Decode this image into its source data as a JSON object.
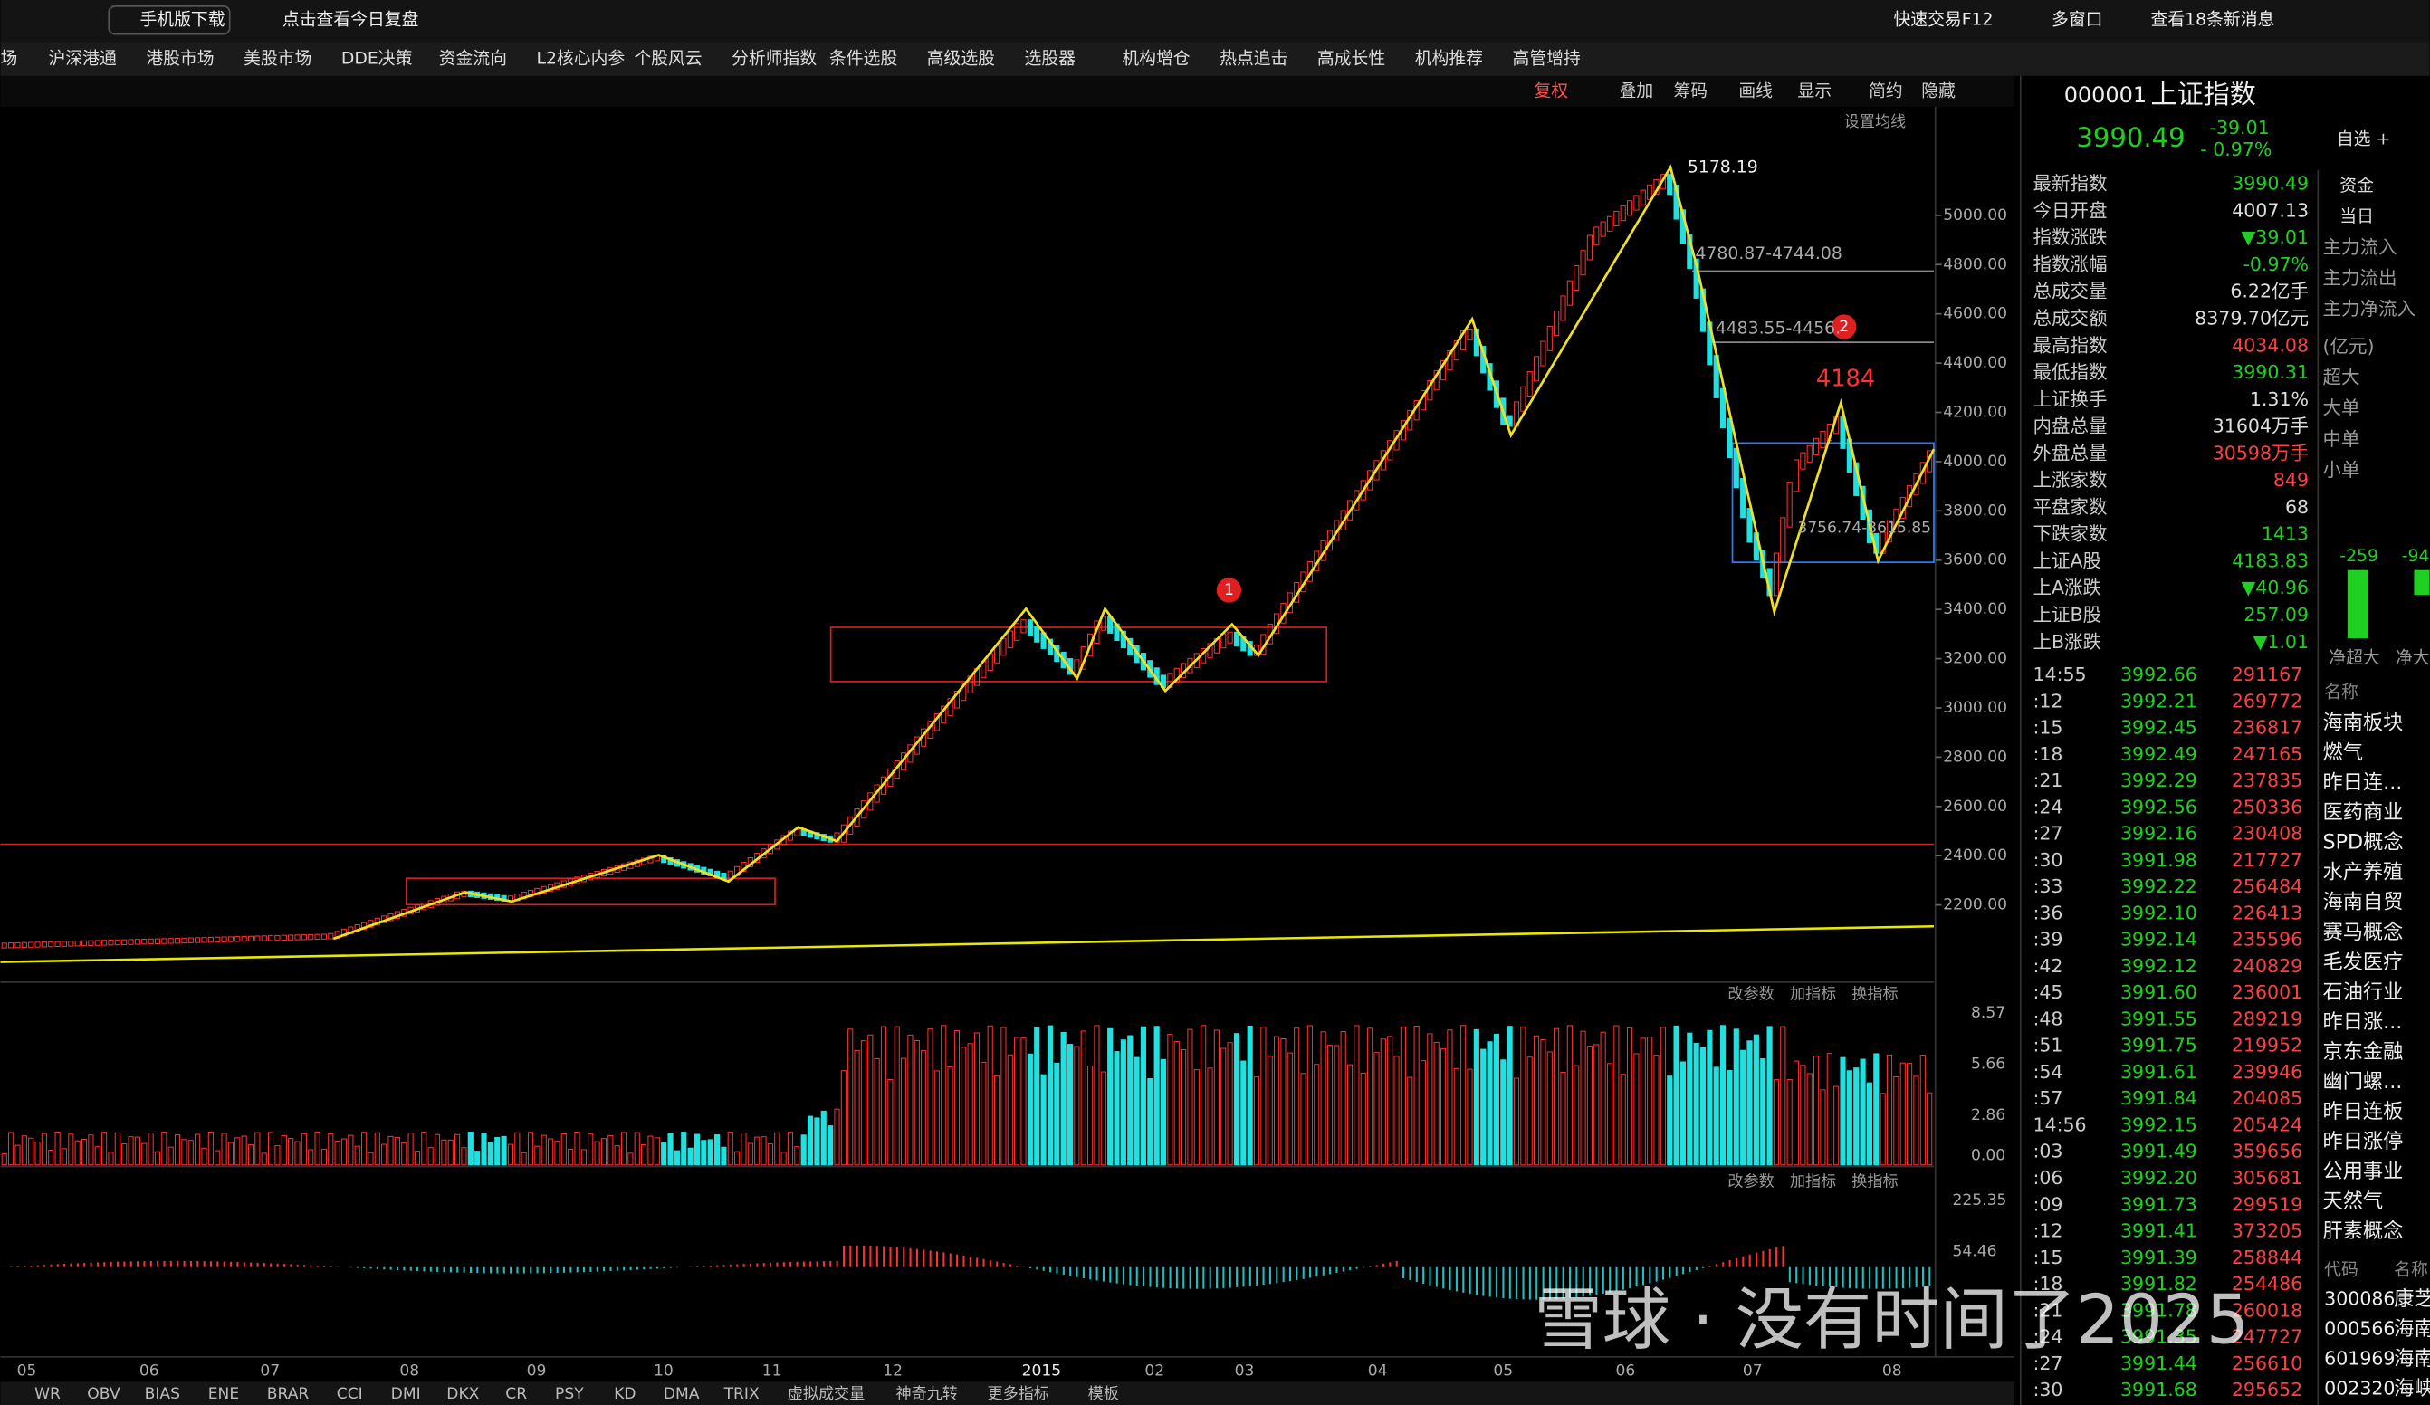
{
  "top_bar": {
    "left": [
      "手机版下载",
      "点击查看今日复盘"
    ],
    "right": [
      "快速交易F12",
      "多窗口",
      "查看18条新消息"
    ]
  },
  "menu": [
    "场",
    "沪深港通",
    "港股市场",
    "美股市场",
    "DDE决策",
    "资金流向",
    "L2核心内参",
    "个股风云",
    "分析师指数",
    "条件选股",
    "高级选股",
    "选股器",
    "机构增仓",
    "热点追击",
    "高成长性",
    "机构推荐",
    "高管增持"
  ],
  "toolbar": [
    "复权",
    "叠加",
    "筹码",
    "画线",
    "显示",
    "简约",
    "隐藏"
  ],
  "ma_setting": "设置均线",
  "price_axis": [
    "5000.00",
    "4800.00",
    "4600.00",
    "4400.00",
    "4200.00",
    "4000.00",
    "3800.00",
    "3600.00",
    "3400.00",
    "3200.00",
    "3000.00",
    "2800.00",
    "2600.00",
    "2400.00",
    "2200.00"
  ],
  "annotations": {
    "high": "5178.19",
    "band1": "4780.87-4744.08",
    "band2": "4483.55-4456.",
    "peak": "4184",
    "range": "3756.74-3615.85",
    "marker1": "1",
    "marker2": "2"
  },
  "panel_buttons": [
    "改参数",
    "加指标",
    "换指标"
  ],
  "volume_axis": [
    "8.57",
    "5.66",
    "2.86",
    "0.00"
  ],
  "macd_axis": [
    "225.35",
    "54.46"
  ],
  "x_axis": [
    "05",
    "06",
    "07",
    "08",
    "09",
    "10",
    "11",
    "12",
    "2015",
    "02",
    "03",
    "04",
    "05",
    "06",
    "07",
    "08"
  ],
  "bottom_tabs": [
    "WR",
    "OBV",
    "BIAS",
    "ENE",
    "BRAR",
    "CCI",
    "DMI",
    "DKX",
    "CR",
    "PSY",
    "KD",
    "DMA",
    "TRIX",
    "虚拟成交量",
    "神奇九转",
    "更多指标",
    "模板"
  ],
  "quote": {
    "code": "000001",
    "name": "上证指数",
    "price": "3990.49",
    "change": "-39.01",
    "pct": "- 0.97%",
    "watch": "自选 +"
  },
  "stats": [
    [
      "最新指数",
      "3990.49"
    ],
    [
      "今日开盘",
      "4007.13"
    ],
    [
      "指数涨跌",
      "▼39.01"
    ],
    [
      "指数涨幅",
      "-0.97%"
    ],
    [
      "总成交量",
      "6.22亿手"
    ],
    [
      "总成交额",
      "8379.70亿元"
    ],
    [
      "最高指数",
      "4034.08"
    ],
    [
      "最低指数",
      "3990.31"
    ],
    [
      "上证换手",
      "1.31%"
    ],
    [
      "内盘总量",
      "31604万手"
    ],
    [
      "外盘总量",
      "30598万手"
    ],
    [
      "上涨家数",
      "849"
    ],
    [
      "平盘家数",
      "68"
    ],
    [
      "下跌家数",
      "1413"
    ],
    [
      "上证A股",
      "4183.83"
    ],
    [
      "上A涨跌",
      "▼40.96"
    ],
    [
      "上证B股",
      "257.09"
    ],
    [
      "上B涨跌",
      "▼1.01"
    ]
  ],
  "trades": [
    [
      "14:55",
      "3992.66",
      "291167"
    ],
    [
      ":12",
      "3992.21",
      "269772"
    ],
    [
      ":15",
      "3992.45",
      "236817"
    ],
    [
      ":18",
      "3992.49",
      "247165"
    ],
    [
      ":21",
      "3992.29",
      "237835"
    ],
    [
      ":24",
      "3992.56",
      "250336"
    ],
    [
      ":27",
      "3992.16",
      "230408"
    ],
    [
      ":30",
      "3991.98",
      "217727"
    ],
    [
      ":33",
      "3992.22",
      "256484"
    ],
    [
      ":36",
      "3992.10",
      "226413"
    ],
    [
      ":39",
      "3992.14",
      "235596"
    ],
    [
      ":42",
      "3992.12",
      "240829"
    ],
    [
      ":45",
      "3991.60",
      "236001"
    ],
    [
      ":48",
      "3991.55",
      "289219"
    ],
    [
      ":51",
      "3991.75",
      "219952"
    ],
    [
      ":54",
      "3991.61",
      "239946"
    ],
    [
      ":57",
      "3991.84",
      "204085"
    ],
    [
      "14:56",
      "3992.15",
      "205424"
    ],
    [
      ":03",
      "3991.49",
      "359656"
    ],
    [
      ":06",
      "3992.20",
      "305681"
    ],
    [
      ":09",
      "3991.73",
      "299519"
    ],
    [
      ":12",
      "3991.41",
      "373205"
    ],
    [
      ":15",
      "3991.39",
      "258844"
    ],
    [
      ":18",
      "3991.82",
      "254486"
    ],
    [
      ":21",
      "3991.78",
      "260018"
    ],
    [
      ":24",
      "3991.35",
      "247727"
    ],
    [
      ":27",
      "3991.44",
      "256610"
    ],
    [
      ":30",
      "3991.68",
      "295652"
    ]
  ],
  "fund_panel": {
    "tabs": [
      "资金",
      "当日"
    ],
    "labels": [
      "主力流入",
      "主力流出",
      "主力净流入",
      "(亿元)",
      "超大",
      "大单",
      "中单",
      "小单"
    ],
    "bars": [
      "-259",
      "-94"
    ],
    "bar_labels": [
      "净超大",
      "净大"
    ]
  },
  "sectors": {
    "header": "名称",
    "items": [
      "海南板块",
      "燃气",
      "昨日连...",
      "医药商业",
      "SPD概念",
      "水产养殖",
      "海南自贸",
      "赛马概念",
      "毛发医疗",
      "石油行业",
      "昨日涨...",
      "京东金融",
      "幽门螺...",
      "昨日连板",
      "昨日涨停",
      "公用事业",
      "天然气",
      "肝素概念"
    ]
  },
  "stocks": {
    "header": [
      "代码",
      "名称"
    ],
    "rows": [
      [
        "300086",
        "康芝"
      ],
      [
        "000566",
        "海南"
      ],
      [
        "601969",
        "海南"
      ],
      [
        "002320",
        "海峡"
      ]
    ]
  },
  "watermark": "雪球 · 没有时间了2025"
}
